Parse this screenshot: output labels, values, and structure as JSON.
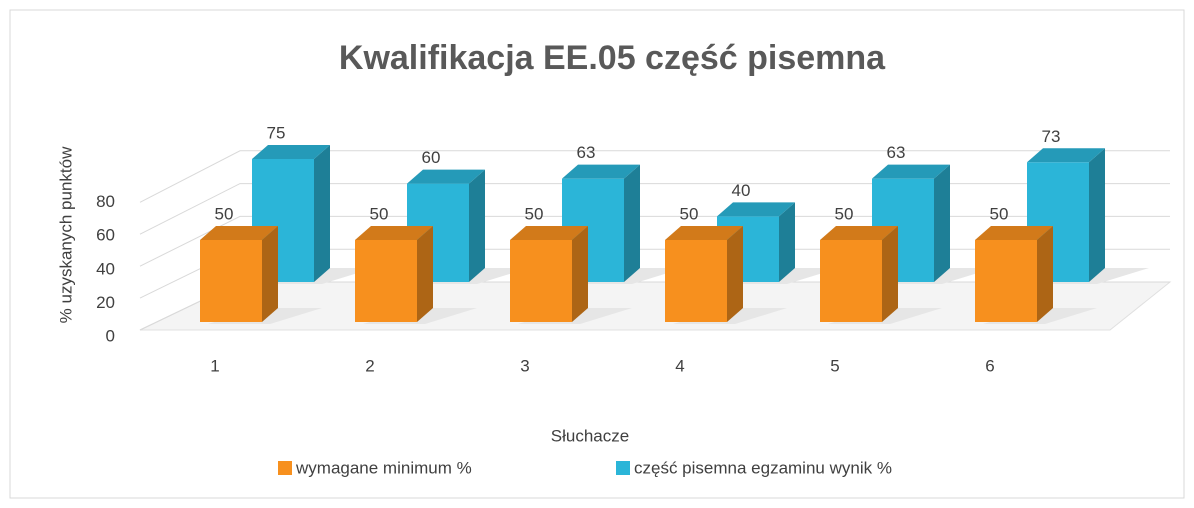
{
  "chart_data": {
    "type": "bar3d",
    "title": "Kwalifikacja EE.05 część pisemna",
    "x_label": "Słuchacze",
    "y_label": "% uzyskanych punktów",
    "categories": [
      "1",
      "2",
      "3",
      "4",
      "5",
      "6"
    ],
    "series": [
      {
        "name": "wymagane minimum %",
        "color": "#f7901e",
        "values": [
          50,
          50,
          50,
          50,
          50,
          50
        ]
      },
      {
        "name": "część pisemna egzaminu wynik %",
        "color": "#2bb5d8",
        "values": [
          75,
          60,
          63,
          40,
          63,
          73
        ]
      }
    ],
    "ylim": [
      0,
      100
    ],
    "yticks": [
      0,
      20,
      40,
      60,
      80
    ],
    "grid": true,
    "legend": "bottom"
  }
}
